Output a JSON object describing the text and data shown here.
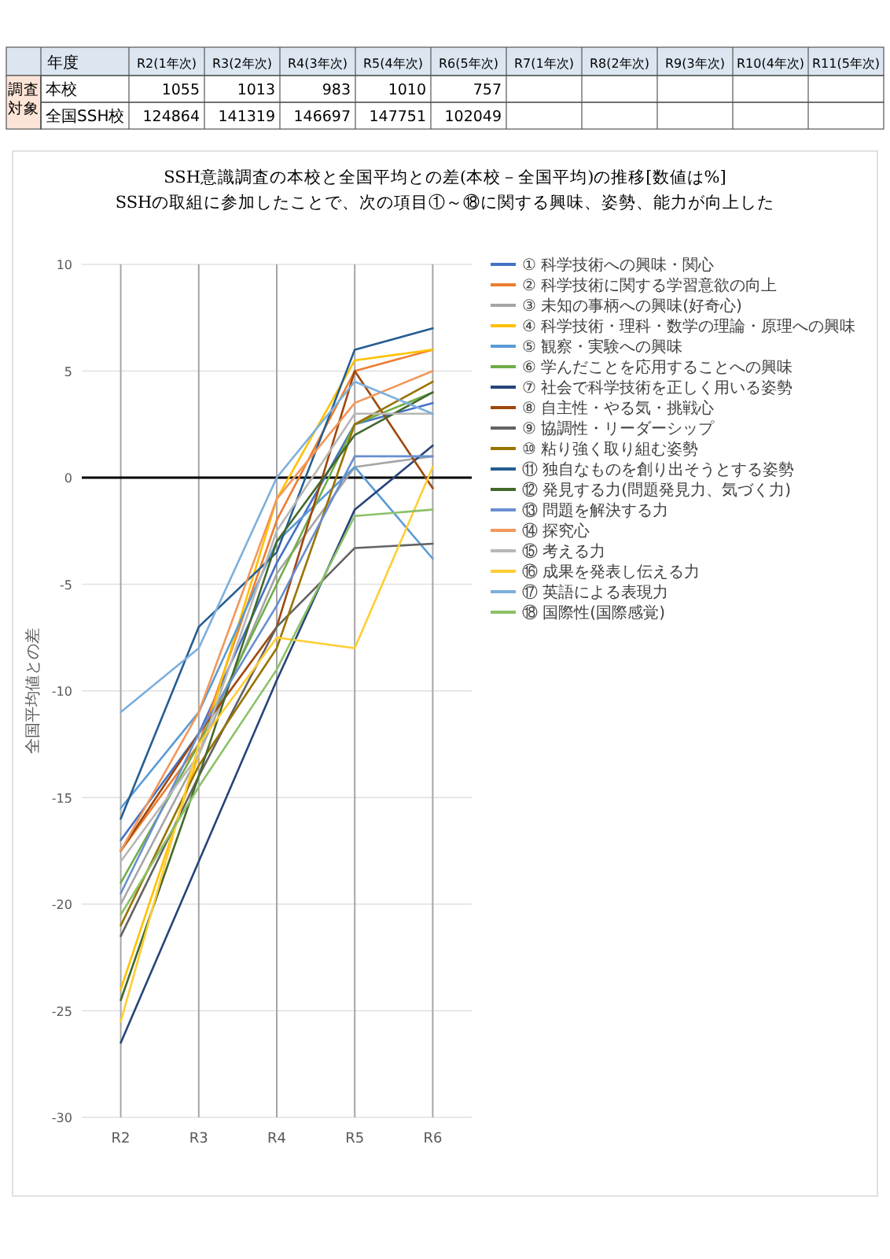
{
  "chart_data": [
    {
      "type": "heatmap",
      "xlabel": "年度",
      "ylabel": "調査対象",
      "categories": [
        "R2(1年次)",
        "R3(2年次)",
        "R4(3年次)",
        "R5(4年次)",
        "R6(5年次)",
        "R7(1年次)",
        "R8(2年次)",
        "R9(3年次)",
        "R10(4年次)",
        "R11(5年次)"
      ],
      "y_categories": [
        "本校",
        "全国SSH校"
      ],
      "data_labels": true,
      "cells": [
        [
          1055,
          1013,
          983,
          1010,
          757,
          null,
          null,
          null,
          null,
          null
        ],
        [
          124864,
          141319,
          146697,
          147751,
          102049,
          null,
          null,
          null,
          null,
          null
        ]
      ]
    },
    {
      "type": "line",
      "title": "SSH意識調査の本校と全国平均との差(本校－全国平均)の推移[数値は%]",
      "subtitle": "SSHの取組に参加したことで、次の項目①～⑱に関する興味、姿勢、能力が向上した",
      "ylabel": "全国平均値との差",
      "categories": [
        "R2",
        "R3",
        "R4",
        "R5",
        "R6"
      ],
      "ylim": [
        -30,
        10
      ],
      "yticks": [
        -30,
        -25,
        -20,
        -15,
        -10,
        -5,
        0,
        5,
        10
      ],
      "grid": true,
      "legend": "right",
      "series": [
        {
          "name": "① 科学技術への興味・関心",
          "color": "#4472c4",
          "values": [
            -17,
            -12,
            -4,
            2.5,
            3.5
          ]
        },
        {
          "name": "② 科学技術に関する学習意欲の向上",
          "color": "#ed7d31",
          "values": [
            -17.5,
            -12.5,
            -2,
            5,
            6
          ]
        },
        {
          "name": "③ 未知の事柄への興味(好奇心)",
          "color": "#a5a5a5",
          "values": [
            -20,
            -13,
            -4.5,
            0.5,
            1
          ]
        },
        {
          "name": "④ 科学技術・理科・数学の理論・原理への興味",
          "color": "#ffc000",
          "values": [
            -24,
            -13,
            -1,
            5.5,
            6
          ]
        },
        {
          "name": "⑤ 観察・実験への興味",
          "color": "#5b9bd5",
          "values": [
            -15.5,
            -11,
            -3,
            0.5,
            -3.8
          ]
        },
        {
          "name": "⑥ 学んだことを応用することへの興味",
          "color": "#70ad47",
          "values": [
            -19,
            -12.5,
            -5,
            2.5,
            4
          ]
        },
        {
          "name": "⑦ 社会で科学技術を正しく用いる姿勢",
          "color": "#264478",
          "values": [
            -26.5,
            -18,
            -9.5,
            -1.5,
            1.5
          ]
        },
        {
          "name": "⑧ 自主性・やる気・挑戦心",
          "color": "#9e480e",
          "values": [
            -17.5,
            -12,
            -7,
            5,
            -0.5
          ]
        },
        {
          "name": "⑨ 協調性・リーダーシップ",
          "color": "#636363",
          "values": [
            -21.5,
            -14,
            -7,
            -3.3,
            -3.1
          ]
        },
        {
          "name": "⑩ 粘り強く取り組む姿勢",
          "color": "#997300",
          "values": [
            -21,
            -13.5,
            -8,
            2.5,
            4.5
          ]
        },
        {
          "name": "⑪ 独自なものを創り出そうとする姿勢",
          "color": "#255e91",
          "values": [
            -16,
            -7,
            -3.5,
            6,
            7
          ]
        },
        {
          "name": "⑫ 発見する力(問題発見力、気づく力)",
          "color": "#43682b",
          "values": [
            -24.5,
            -14,
            -3,
            2,
            4
          ]
        },
        {
          "name": "⑬ 問題を解決する力",
          "color": "#698ed0",
          "values": [
            -19.5,
            -12,
            -6,
            1,
            1
          ]
        },
        {
          "name": "⑭ 探究心",
          "color": "#f1975a",
          "values": [
            -17.5,
            -11,
            -1,
            3.5,
            5
          ]
        },
        {
          "name": "⑮ 考える力",
          "color": "#b7b7b7",
          "values": [
            -18,
            -13,
            -2.5,
            3,
            3
          ]
        },
        {
          "name": "⑯ 成果を発表し伝える力",
          "color": "#ffcd33",
          "values": [
            -25.5,
            -12.5,
            -7.5,
            -8,
            0.5
          ]
        },
        {
          "name": "⑰ 英語による表現力",
          "color": "#7cafdd",
          "values": [
            -11,
            -8,
            0,
            4.5,
            3
          ]
        },
        {
          "name": "⑱ 国際性(国際感覚)",
          "color": "#8cc168",
          "values": [
            -20.5,
            -14.5,
            -9,
            -1.8,
            -1.5
          ]
        }
      ]
    }
  ]
}
